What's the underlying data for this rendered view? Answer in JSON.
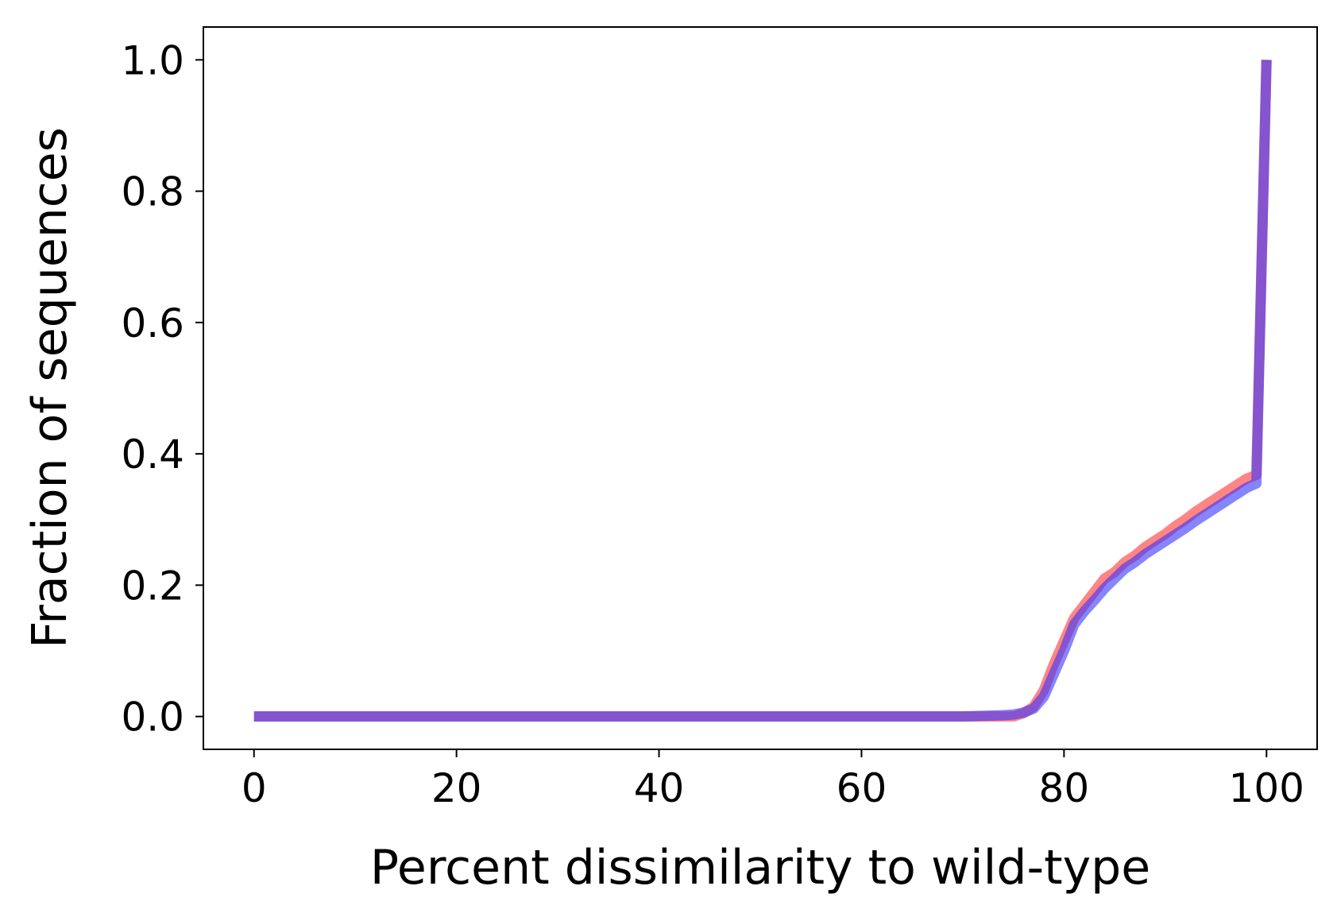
{
  "chart_data": {
    "type": "line",
    "title": "",
    "xlabel": "Percent dissimilarity to wild-type",
    "ylabel": "Fraction of sequences",
    "xlim": [
      -5,
      105
    ],
    "ylim": [
      -0.05,
      1.05
    ],
    "xticks": [
      0,
      20,
      40,
      60,
      80,
      100
    ],
    "yticks": [
      0.0,
      0.2,
      0.4,
      0.6,
      0.8,
      1.0
    ],
    "xtick_labels": [
      "0",
      "20",
      "40",
      "60",
      "80",
      "100"
    ],
    "ytick_labels": [
      "0.0",
      "0.2",
      "0.4",
      "0.6",
      "0.8",
      "1.0"
    ],
    "grid": false,
    "legend": false,
    "series": [
      {
        "color": "#ff3333",
        "opacity": 0.6,
        "x": [
          0,
          10,
          20,
          30,
          40,
          50,
          60,
          70,
          72,
          74,
          75,
          76,
          77,
          78,
          79,
          80,
          81,
          82,
          83,
          84,
          85,
          86,
          87,
          88,
          89,
          90,
          91,
          92,
          93,
          94,
          95,
          96,
          97,
          98,
          99,
          100
        ],
        "y": [
          0.0,
          0.0,
          0.0,
          0.0,
          0.0,
          0.0,
          0.0,
          0.0,
          0.0,
          0.0,
          0.0,
          0.005,
          0.015,
          0.04,
          0.08,
          0.115,
          0.15,
          0.17,
          0.19,
          0.21,
          0.22,
          0.235,
          0.245,
          0.258,
          0.268,
          0.278,
          0.29,
          0.3,
          0.312,
          0.322,
          0.332,
          0.342,
          0.352,
          0.362,
          0.368,
          1.0
        ]
      },
      {
        "color": "#3333ff",
        "opacity": 0.6,
        "x": [
          0,
          10,
          20,
          30,
          40,
          50,
          60,
          70,
          72,
          74,
          75,
          76,
          77,
          78,
          79,
          80,
          81,
          82,
          83,
          84,
          85,
          86,
          87,
          88,
          89,
          90,
          91,
          92,
          93,
          94,
          95,
          96,
          97,
          98,
          99,
          100
        ],
        "y": [
          0.0,
          0.0,
          0.0,
          0.0,
          0.0,
          0.0,
          0.0,
          0.0,
          0.001,
          0.002,
          0.003,
          0.006,
          0.012,
          0.03,
          0.065,
          0.1,
          0.14,
          0.16,
          0.177,
          0.195,
          0.21,
          0.225,
          0.235,
          0.247,
          0.257,
          0.267,
          0.277,
          0.287,
          0.298,
          0.308,
          0.318,
          0.328,
          0.338,
          0.348,
          0.355,
          1.0
        ]
      }
    ]
  }
}
